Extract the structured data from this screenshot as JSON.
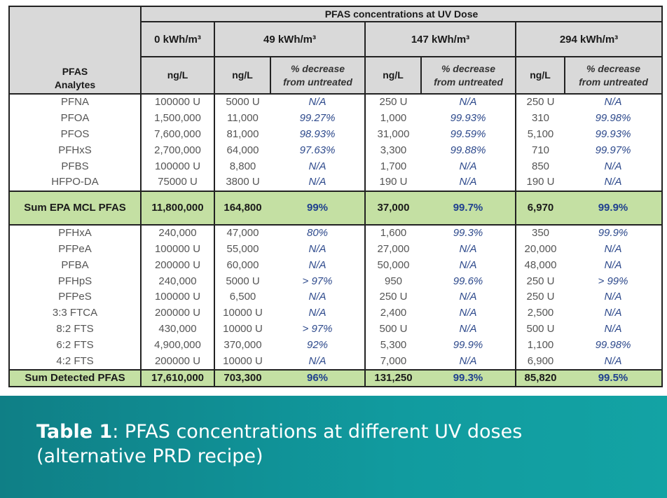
{
  "table": {
    "group_header": "PFAS concentrations at UV Dose",
    "analyte_header": [
      "PFAS",
      "Analytes"
    ],
    "doses": [
      "0 kWh/m³",
      "49 kWh/m³",
      "147 kWh/m³",
      "294 kWh/m³"
    ],
    "unit": "ng/L",
    "pct_header": [
      "% decrease",
      "from untreated"
    ],
    "rows_a": [
      [
        "PFNA",
        "100000 U",
        "5000 U",
        "N/A",
        "250 U",
        "N/A",
        "250 U",
        "N/A"
      ],
      [
        "PFOA",
        "1,500,000",
        "11,000",
        "99.27%",
        "1,000",
        "99.93%",
        "310",
        "99.98%"
      ],
      [
        "PFOS",
        "7,600,000",
        "81,000",
        "98.93%",
        "31,000",
        "99.59%",
        "5,100",
        "99.93%"
      ],
      [
        "PFHxS",
        "2,700,000",
        "64,000",
        "97.63%",
        "3,300",
        "99.88%",
        "710",
        "99.97%"
      ],
      [
        "PFBS",
        "100000 U",
        "8,800",
        "N/A",
        "1,700",
        "N/A",
        "850",
        "N/A"
      ],
      [
        "HFPO-DA",
        "75000 U",
        "3800 U",
        "N/A",
        "190 U",
        "N/A",
        "190 U",
        "N/A"
      ]
    ],
    "sum_epa": [
      "Sum EPA MCL PFAS",
      "11,800,000",
      "164,800",
      "99%",
      "37,000",
      "99.7%",
      "6,970",
      "99.9%"
    ],
    "rows_b": [
      [
        "PFHxA",
        "240,000",
        "47,000",
        "80%",
        "1,600",
        "99.3%",
        "350",
        "99.9%"
      ],
      [
        "PFPeA",
        "100000 U",
        "55,000",
        "N/A",
        "27,000",
        "N/A",
        "20,000",
        "N/A"
      ],
      [
        "PFBA",
        "200000 U",
        "60,000",
        "N/A",
        "50,000",
        "N/A",
        "48,000",
        "N/A"
      ],
      [
        "PFHpS",
        "240,000",
        "5000 U",
        "> 97%",
        "950",
        "99.6%",
        "250 U",
        "> 99%"
      ],
      [
        "PFPeS",
        "100000 U",
        "6,500",
        "N/A",
        "250 U",
        "N/A",
        "250 U",
        "N/A"
      ],
      [
        "3:3 FTCA",
        "200000 U",
        "10000 U",
        "N/A",
        "2,400",
        "N/A",
        "2,500",
        "N/A"
      ],
      [
        "8:2 FTS",
        "430,000",
        "10000 U",
        "> 97%",
        "500 U",
        "N/A",
        "500 U",
        "N/A"
      ],
      [
        "6:2 FTS",
        "4,900,000",
        "370,000",
        "92%",
        "5,300",
        "99.9%",
        "1,100",
        "99.98%"
      ],
      [
        "4:2 FTS",
        "200000 U",
        "10000 U",
        "N/A",
        "7,000",
        "N/A",
        "6,900",
        "N/A"
      ]
    ],
    "sum_detected": [
      "Sum Detected PFAS",
      "17,610,000",
      "703,300",
      "96%",
      "131,250",
      "99.3%",
      "85,820",
      "99.5%"
    ]
  },
  "caption": {
    "label": "Table 1",
    "text": ": PFAS concentrations at different UV doses",
    "line2": "(alternative PRD recipe)"
  },
  "colors": {
    "header_bg": "#d9d9d9",
    "sum_bg": "#c4e0a3",
    "pct_text": "#2e4a8c",
    "banner": "#119b9f"
  }
}
